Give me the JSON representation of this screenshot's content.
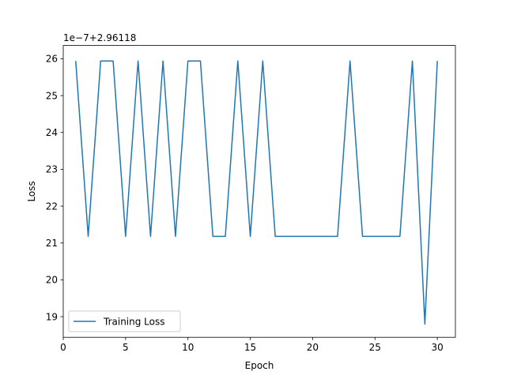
{
  "chart_data": {
    "type": "line",
    "xlabel": "Epoch",
    "ylabel": "Loss",
    "offset_label": "1e−7+2.96118",
    "xlim": [
      0,
      31.45
    ],
    "ylim": [
      18.44,
      26.36
    ],
    "x_ticks": [
      0,
      5,
      10,
      15,
      20,
      25,
      30
    ],
    "y_ticks": [
      19,
      20,
      21,
      22,
      23,
      24,
      25,
      26
    ],
    "grid": false,
    "legend_position": "lower-left",
    "series": [
      {
        "name": "Training Loss",
        "color": "#1f77b4",
        "x": [
          1,
          2,
          3,
          4,
          5,
          6,
          7,
          8,
          9,
          10,
          11,
          12,
          13,
          14,
          15,
          16,
          17,
          18,
          19,
          20,
          21,
          22,
          23,
          24,
          25,
          26,
          27,
          28,
          29,
          30
        ],
        "y": [
          25.94,
          21.18,
          25.94,
          25.94,
          21.18,
          25.94,
          21.18,
          25.94,
          21.18,
          25.94,
          25.94,
          21.18,
          21.18,
          25.94,
          21.18,
          25.94,
          21.18,
          21.18,
          21.18,
          21.18,
          21.18,
          21.18,
          25.94,
          21.18,
          21.18,
          21.18,
          21.18,
          25.94,
          18.8,
          25.94
        ]
      }
    ]
  }
}
